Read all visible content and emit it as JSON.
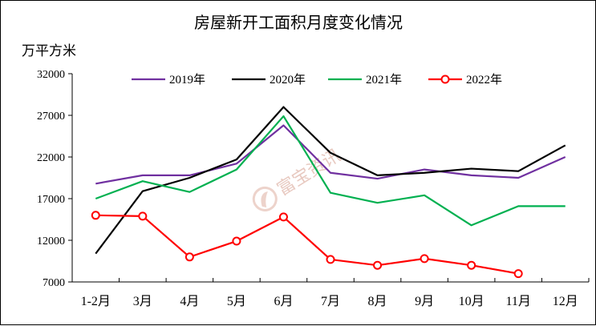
{
  "chart_data": {
    "type": "line",
    "title": "房屋新开工面积月度变化情况",
    "ylabel": "万平方米",
    "xlabel": "",
    "categories": [
      "1-2月",
      "3月",
      "4月",
      "5月",
      "6月",
      "7月",
      "8月",
      "9月",
      "10月",
      "11月",
      "12月"
    ],
    "ylim": [
      7000,
      32000
    ],
    "yticks": [
      7000,
      12000,
      17000,
      22000,
      27000,
      32000
    ],
    "legend_position": "top",
    "grid": false,
    "series": [
      {
        "name": "2019年",
        "color": "#7030a0",
        "marker": "none",
        "values": [
          18800,
          19800,
          19800,
          21200,
          25800,
          20100,
          19400,
          20500,
          19800,
          19500,
          22000
        ]
      },
      {
        "name": "2020年",
        "color": "#000000",
        "marker": "none",
        "values": [
          10400,
          17900,
          19500,
          21700,
          28000,
          22500,
          19800,
          20100,
          20600,
          20300,
          23400
        ]
      },
      {
        "name": "2021年",
        "color": "#00b050",
        "marker": "none",
        "values": [
          17000,
          19100,
          17800,
          20500,
          26900,
          17700,
          16500,
          17400,
          13800,
          16100,
          16100
        ]
      },
      {
        "name": "2022年",
        "color": "#ff0000",
        "marker": "circle",
        "values": [
          15000,
          14900,
          10000,
          11900,
          14800,
          9700,
          9000,
          9800,
          9000,
          8000,
          null
        ]
      }
    ],
    "watermark": "富宝资讯"
  }
}
